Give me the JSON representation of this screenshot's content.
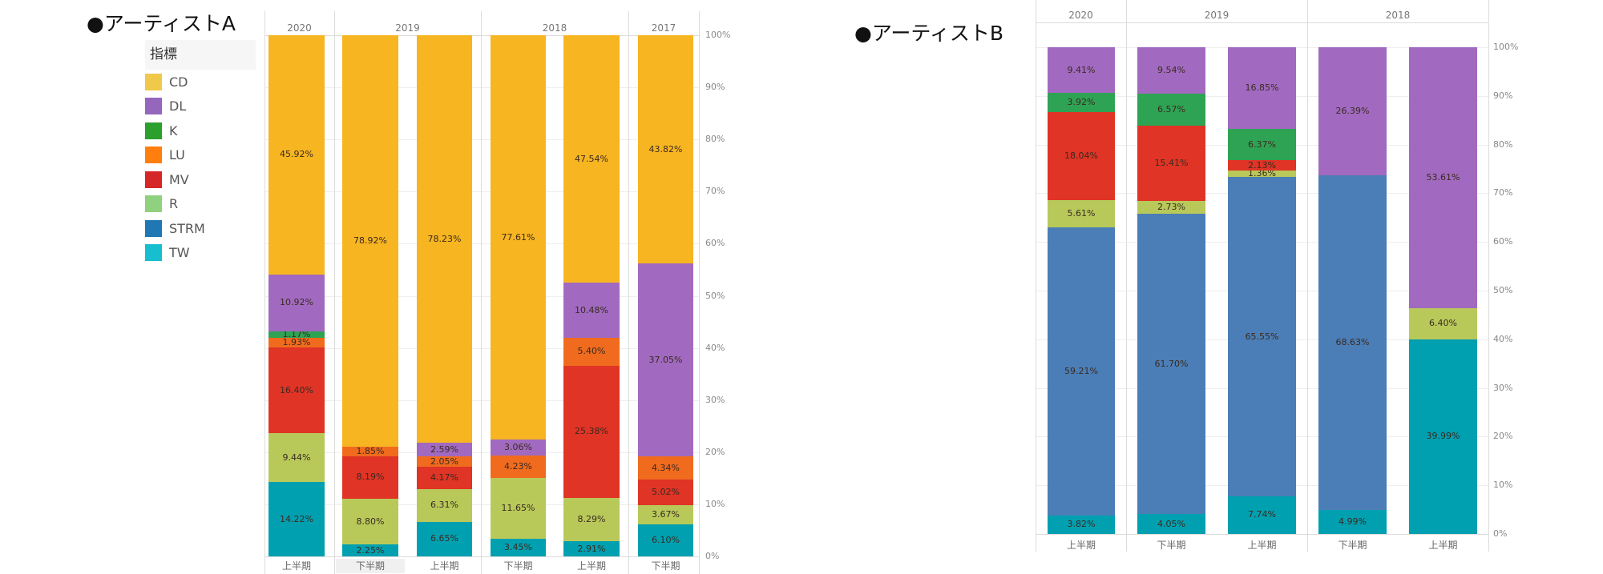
{
  "titles": {
    "a": "●アーティストA",
    "b": "●アーティストB"
  },
  "legend": {
    "title": "指標",
    "items": [
      {
        "label": "CD",
        "color": "#f0c84a"
      },
      {
        "label": "DL",
        "color": "#9467bd"
      },
      {
        "label": "K",
        "color": "#2ca02c"
      },
      {
        "label": "LU",
        "color": "#ff7f0e"
      },
      {
        "label": "MV",
        "color": "#d62728"
      },
      {
        "label": "R",
        "color": "#8fd17e"
      },
      {
        "label": "STRM",
        "color": "#1f77b4"
      },
      {
        "label": "TW",
        "color": "#17becf"
      }
    ]
  },
  "chart_data": [
    {
      "type": "bar",
      "stacked": true,
      "title": "●アーティストA",
      "ylim": [
        0,
        100
      ],
      "yticks": [
        "0%",
        "10%",
        "20%",
        "30%",
        "40%",
        "50%",
        "60%",
        "70%",
        "80%",
        "90%",
        "100%"
      ],
      "groups": [
        {
          "label": "2020",
          "bars": 1
        },
        {
          "label": "2019",
          "bars": 2
        },
        {
          "label": "2018",
          "bars": 2
        },
        {
          "label": "2017",
          "bars": 1
        }
      ],
      "categories": [
        "上半期",
        "下半期",
        "上半期",
        "下半期",
        "上半期",
        "下半期"
      ],
      "series_colors": {
        "CD": "#f7b521",
        "DL": "#a16ac0",
        "K": "#2ea354",
        "LU": "#f06b1e",
        "MV": "#df3426",
        "R": "#b8c95a",
        "STRM": "#4b7eb6",
        "TW": "#00a0b0"
      },
      "series": [
        {
          "name": "CD",
          "values": [
            45.92,
            78.92,
            78.23,
            77.61,
            47.54,
            43.82
          ]
        },
        {
          "name": "DL",
          "values": [
            10.92,
            null,
            2.59,
            3.06,
            10.48,
            37.05
          ]
        },
        {
          "name": "K",
          "values": [
            1.17,
            null,
            null,
            null,
            null,
            null
          ]
        },
        {
          "name": "LU",
          "values": [
            1.93,
            1.85,
            2.05,
            4.23,
            5.4,
            4.34
          ]
        },
        {
          "name": "MV",
          "values": [
            16.4,
            8.19,
            4.17,
            null,
            25.38,
            5.02
          ]
        },
        {
          "name": "R",
          "values": [
            9.44,
            8.8,
            6.31,
            11.65,
            8.29,
            3.67
          ]
        },
        {
          "name": "STRM",
          "values": [
            null,
            null,
            null,
            null,
            null,
            null
          ]
        },
        {
          "name": "TW",
          "values": [
            14.22,
            2.25,
            6.65,
            3.45,
            2.91,
            6.1
          ]
        }
      ]
    },
    {
      "type": "bar",
      "stacked": true,
      "title": "●アーティストB",
      "ylim": [
        0,
        100
      ],
      "yticks": [
        "0%",
        "10%",
        "20%",
        "30%",
        "40%",
        "50%",
        "60%",
        "70%",
        "80%",
        "90%",
        "100%"
      ],
      "groups": [
        {
          "label": "2020",
          "bars": 1
        },
        {
          "label": "2019",
          "bars": 2
        },
        {
          "label": "2018",
          "bars": 2
        }
      ],
      "categories": [
        "上半期",
        "下半期",
        "上半期",
        "下半期",
        "上半期"
      ],
      "series_colors": {
        "CD": "#f7b521",
        "DL": "#a16ac0",
        "K": "#2ea354",
        "LU": "#f06b1e",
        "MV": "#df3426",
        "R": "#b8c95a",
        "STRM": "#4b7eb6",
        "TW": "#00a0b0"
      },
      "series": [
        {
          "name": "CD",
          "values": [
            null,
            null,
            null,
            null,
            null
          ]
        },
        {
          "name": "DL",
          "values": [
            9.41,
            9.54,
            16.85,
            26.39,
            53.61
          ]
        },
        {
          "name": "K",
          "values": [
            3.92,
            6.57,
            6.37,
            null,
            null
          ]
        },
        {
          "name": "LU",
          "values": [
            null,
            null,
            null,
            null,
            null
          ]
        },
        {
          "name": "MV",
          "values": [
            18.04,
            15.41,
            2.13,
            null,
            null
          ]
        },
        {
          "name": "R",
          "values": [
            5.61,
            2.73,
            1.36,
            null,
            6.4
          ]
        },
        {
          "name": "STRM",
          "values": [
            59.21,
            61.7,
            65.55,
            68.63,
            null
          ]
        },
        {
          "name": "TW",
          "values": [
            3.82,
            4.05,
            7.74,
            4.99,
            39.99
          ]
        }
      ]
    }
  ]
}
